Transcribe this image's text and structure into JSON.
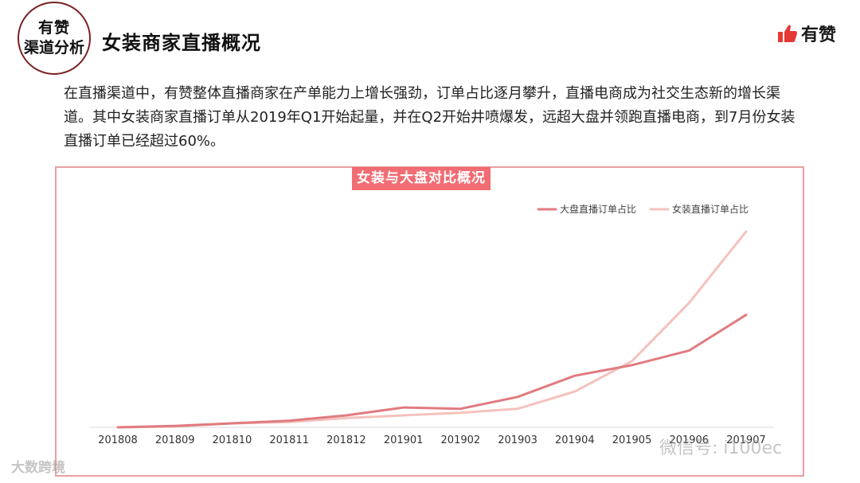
{
  "header": {
    "badge_line1": "有赞",
    "badge_line2": "渠道分析",
    "title": "女装商家直播概况",
    "brand_name": "有赞",
    "brand_icon": "thumbs-up-icon",
    "accent": "#e53935"
  },
  "intro": {
    "text": "在直播渠道中，有赞整体直播商家在产单能力上增长强劲，订单占比逐月攀升，直播电商成为社交生态新的增长渠道。其中女装商家直播订单从2019年Q1开始起量，并在Q2开始井喷爆发，远超大盘并领跑直播电商，到7月份女装直播订单已经超过60%。"
  },
  "chart_data": {
    "type": "line",
    "title": "女装与大盘对比概况",
    "categories": [
      "201808",
      "201809",
      "201810",
      "201811",
      "201812",
      "201901",
      "201902",
      "201903",
      "201904",
      "201905",
      "201906",
      "201907"
    ],
    "series": [
      {
        "name": "大盘直播订单占比",
        "color": "#e07b80",
        "values": [
          0.0,
          0.5,
          1.5,
          2.5,
          4.5,
          7.5,
          7.0,
          11.5,
          19.5,
          23.5,
          29.0,
          42.5
        ]
      },
      {
        "name": "女装直播订单占比",
        "color": "#f4c2bd",
        "values": [
          0.0,
          0.3,
          1.5,
          2.0,
          3.5,
          4.5,
          5.5,
          7.0,
          13.5,
          25.0,
          47.0,
          74.0
        ]
      }
    ],
    "ylim": [
      0,
      80
    ],
    "grid": false,
    "legend": "top-right",
    "xlabel": "",
    "ylabel": ""
  },
  "watermarks": {
    "left": "大数跨境",
    "right": "微信号: i100ec"
  }
}
